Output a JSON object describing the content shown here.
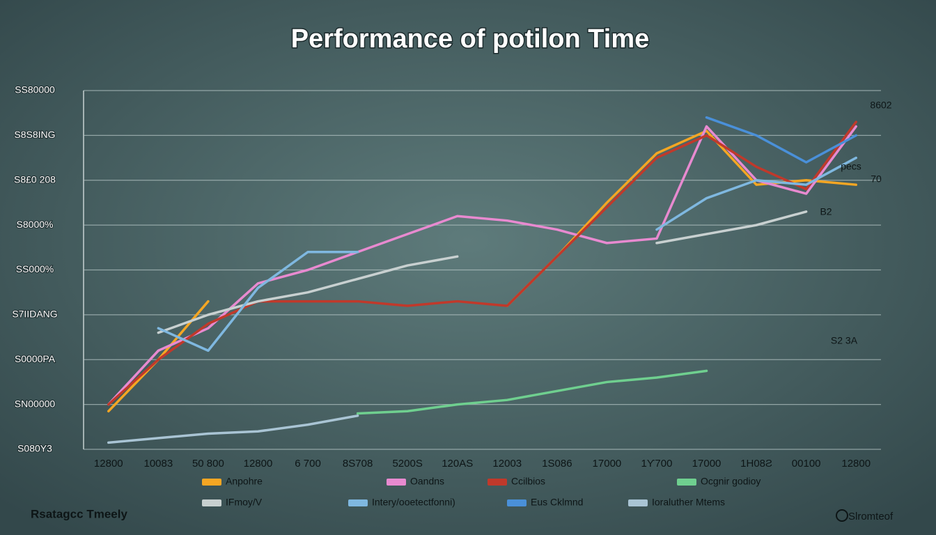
{
  "chart_data": {
    "type": "line",
    "title": "Performance of  potilon Time",
    "categories": [
      "12800",
      "10083",
      "50 800",
      "12800",
      "6 700",
      "8S708",
      "5200S",
      "120AS",
      "12003",
      "1S086",
      "17000",
      "1Ƴ700",
      "17000",
      "1H08Ƨ",
      "00100",
      "12800"
    ],
    "ylim": [
      0,
      8
    ],
    "yticks": [
      {
        "value": 0,
        "label": "S080Y3"
      },
      {
        "value": 1,
        "label": "SN00000"
      },
      {
        "value": 2,
        "label": "S0000PA"
      },
      {
        "value": 3,
        "label": "S7IIDANG"
      },
      {
        "value": 4,
        "label": "SS000%"
      },
      {
        "value": 5,
        "label": "S8000%"
      },
      {
        "value": 6,
        "label": "S8£0 208"
      },
      {
        "value": 7,
        "label": "S8S8ING"
      },
      {
        "value": 8,
        "label": "SS80000"
      }
    ],
    "grid": true,
    "series": [
      {
        "name": "Anpohre",
        "color": "#f5a623",
        "values": [
          0.85,
          2.0,
          3.3,
          null,
          null,
          null,
          null,
          null,
          3.2,
          4.3,
          5.5,
          6.6,
          7.1,
          5.9,
          6.0,
          5.9
        ]
      },
      {
        "name": "Oandns",
        "color": "#e88ad0",
        "values": [
          1.0,
          2.2,
          2.7,
          3.7,
          4.0,
          4.4,
          4.8,
          5.2,
          5.1,
          4.9,
          4.6,
          4.7,
          7.2,
          6.0,
          5.7,
          7.2
        ]
      },
      {
        "name": "Ccilbios",
        "color": "#c0392b",
        "values": [
          1.0,
          2.0,
          2.8,
          3.3,
          3.3,
          3.3,
          3.2,
          3.3,
          3.2,
          4.3,
          5.4,
          6.5,
          7.0,
          6.3,
          5.8,
          7.3
        ]
      },
      {
        "name": "Ocgnir godioy",
        "color": "#6fcf8f",
        "values": [
          null,
          null,
          null,
          null,
          null,
          0.8,
          0.85,
          1.0,
          1.1,
          1.3,
          1.5,
          1.6,
          1.75,
          null,
          null,
          null
        ]
      },
      {
        "name": "IFmoy/V",
        "color": "#c8d0d0",
        "values": [
          null,
          2.6,
          3.0,
          3.3,
          3.5,
          3.8,
          4.1,
          4.3,
          null,
          null,
          null,
          4.6,
          4.8,
          5.0,
          5.3,
          null
        ]
      },
      {
        "name": "Intery/ooetectfonni)",
        "color": "#7fb8e0",
        "values": [
          null,
          2.7,
          2.2,
          3.6,
          4.4,
          4.4,
          null,
          null,
          null,
          null,
          null,
          4.9,
          5.6,
          6.0,
          5.9,
          6.5
        ]
      },
      {
        "name": "Eus Cklmnd",
        "color": "#4a90d9",
        "values": [
          null,
          null,
          null,
          null,
          null,
          null,
          null,
          null,
          null,
          null,
          null,
          null,
          7.4,
          7.0,
          6.4,
          7.0
        ]
      },
      {
        "name": "Ioraluther Mtems",
        "color": "#a9c4d4",
        "values": [
          0.15,
          0.25,
          0.35,
          0.4,
          0.55,
          0.75,
          null,
          null,
          null,
          null,
          null,
          null,
          null,
          null,
          null,
          null
        ]
      }
    ],
    "annotations": [
      "8602",
      "pecs",
      "70",
      "B2",
      "S2 3A"
    ],
    "source": "Rsatagcc Tmeely",
    "logo_text": "Slromteof"
  }
}
